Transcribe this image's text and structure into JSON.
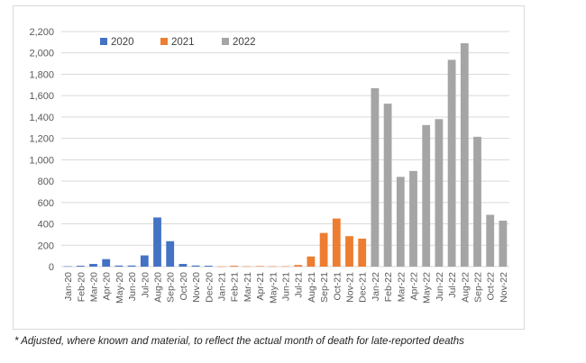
{
  "chart_data": {
    "type": "bar",
    "title": "",
    "xlabel": "",
    "ylabel": "",
    "ylim": [
      0,
      2200
    ],
    "y_ticks": [
      0,
      200,
      400,
      600,
      800,
      1000,
      1200,
      1400,
      1600,
      1800,
      2000,
      2200
    ],
    "y_tick_labels": [
      "0",
      "200",
      "400",
      "600",
      "800",
      "1,000",
      "1,200",
      "1,400",
      "1,600",
      "1,800",
      "2,000",
      "2,200"
    ],
    "grid": true,
    "legend_position": "top-left",
    "categories": [
      "Jan-20",
      "Feb-20",
      "Mar-20",
      "Apr-20",
      "May-20",
      "Jun-20",
      "Jul-20",
      "Aug-20",
      "Sep-20",
      "Oct-20",
      "Nov-20",
      "Dec-20",
      "Jan-21",
      "Feb-21",
      "Mar-21",
      "Apr-21",
      "May-21",
      "Jun-21",
      "Jul-21",
      "Aug-21",
      "Sep-21",
      "Oct-21",
      "Nov-21",
      "Dec-21",
      "Jan-22",
      "Feb-22",
      "Mar-22",
      "Apr-22",
      "May-22",
      "Jun-22",
      "Jul-22",
      "Aug-22",
      "Sep-22",
      "Oct-22",
      "Nov-22"
    ],
    "series": [
      {
        "name": "2020",
        "color": "#4472c4",
        "values": [
          3,
          8,
          25,
          70,
          10,
          10,
          105,
          460,
          238,
          25,
          10,
          8,
          null,
          null,
          null,
          null,
          null,
          null,
          null,
          null,
          null,
          null,
          null,
          null,
          null,
          null,
          null,
          null,
          null,
          null,
          null,
          null,
          null,
          null,
          null
        ]
      },
      {
        "name": "2021",
        "color": "#ed7d31",
        "values": [
          null,
          null,
          null,
          null,
          null,
          null,
          null,
          null,
          null,
          null,
          null,
          null,
          2,
          8,
          3,
          5,
          3,
          3,
          15,
          95,
          315,
          450,
          285,
          262,
          null,
          null,
          null,
          null,
          null,
          null,
          null,
          null,
          null,
          null,
          null
        ]
      },
      {
        "name": "2022",
        "color": "#a5a5a5",
        "values": [
          null,
          null,
          null,
          null,
          null,
          null,
          null,
          null,
          null,
          null,
          null,
          null,
          null,
          null,
          null,
          null,
          null,
          null,
          null,
          null,
          null,
          null,
          null,
          null,
          1670,
          1525,
          840,
          895,
          1325,
          1380,
          1935,
          2090,
          1215,
          485,
          430
        ]
      }
    ]
  },
  "footnote": "* Adjusted, where known and material, to reflect the actual month of death for late-reported deaths"
}
